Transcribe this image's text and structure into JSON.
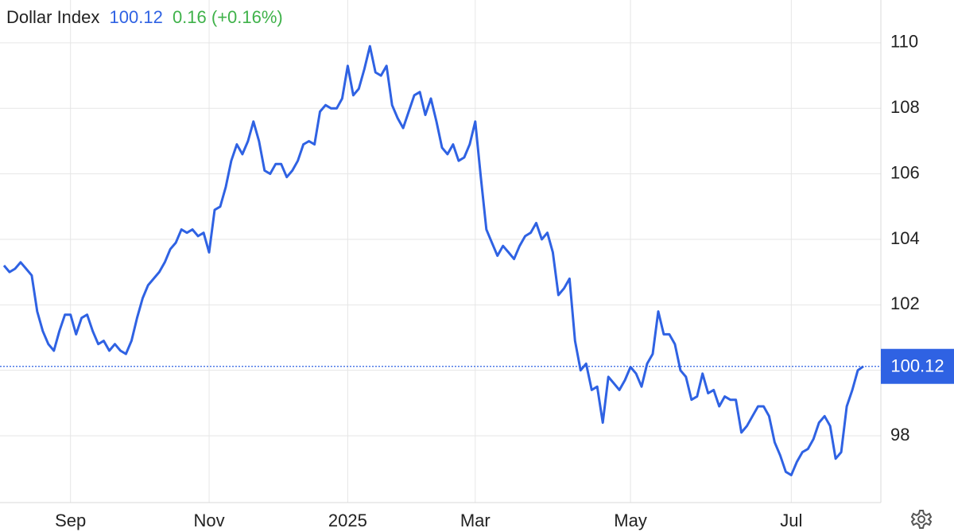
{
  "chart_data": {
    "type": "line",
    "title": "Dollar Index",
    "last_value": 100.12,
    "change_label": "0.16 (+0.16%)",
    "color": "#2f62e3",
    "grid": true,
    "ylim": [
      95.96,
      111.31
    ],
    "yticks": [
      98,
      100,
      102,
      104,
      106,
      108,
      110
    ],
    "categories": [
      null,
      null,
      null,
      null,
      null,
      null,
      null,
      null,
      null,
      null,
      null,
      null,
      "Sep",
      null,
      null,
      null,
      null,
      null,
      null,
      null,
      null,
      null,
      null,
      null,
      null,
      null,
      null,
      null,
      null,
      null,
      null,
      null,
      null,
      null,
      null,
      null,
      null,
      "Nov",
      null,
      null,
      null,
      null,
      null,
      null,
      null,
      null,
      null,
      null,
      null,
      null,
      null,
      null,
      null,
      null,
      null,
      null,
      null,
      null,
      null,
      null,
      null,
      null,
      "2025",
      null,
      null,
      null,
      null,
      null,
      null,
      null,
      null,
      null,
      null,
      null,
      null,
      null,
      null,
      null,
      null,
      null,
      null,
      null,
      null,
      null,
      null,
      "Mar",
      null,
      null,
      null,
      null,
      null,
      null,
      null,
      null,
      null,
      null,
      null,
      null,
      null,
      null,
      null,
      null,
      null,
      null,
      null,
      null,
      null,
      null,
      null,
      null,
      null,
      null,
      null,
      "May",
      null,
      null,
      null,
      null,
      null,
      null,
      null,
      null,
      null,
      null,
      null,
      null,
      null,
      null,
      null,
      null,
      null,
      null,
      null,
      null,
      null,
      null,
      null,
      null,
      null,
      null,
      null,
      null,
      "Jul",
      null,
      null,
      null,
      null,
      null,
      null,
      null,
      null,
      null,
      null,
      null,
      null,
      null
    ],
    "series": [
      {
        "name": "Dollar Index",
        "color": "#2f62e3",
        "values": [
          103.2,
          103.0,
          103.1,
          103.3,
          103.1,
          102.9,
          101.8,
          101.2,
          100.8,
          100.6,
          101.2,
          101.7,
          101.7,
          101.1,
          101.6,
          101.7,
          101.2,
          100.8,
          100.9,
          100.6,
          100.8,
          100.6,
          100.5,
          100.9,
          101.6,
          102.2,
          102.6,
          102.8,
          103.0,
          103.3,
          103.7,
          103.9,
          104.3,
          104.2,
          104.3,
          104.1,
          104.2,
          103.6,
          104.9,
          105.0,
          105.6,
          106.4,
          106.9,
          106.6,
          107.0,
          107.6,
          107.0,
          106.1,
          106.0,
          106.3,
          106.3,
          105.9,
          106.1,
          106.4,
          106.9,
          107.0,
          106.9,
          107.9,
          108.1,
          108.0,
          108.0,
          108.3,
          109.3,
          108.4,
          108.6,
          109.2,
          109.9,
          109.1,
          109.0,
          109.3,
          108.1,
          107.7,
          107.4,
          107.9,
          108.4,
          108.5,
          107.8,
          108.3,
          107.6,
          106.8,
          106.6,
          106.9,
          106.4,
          106.5,
          106.9,
          107.6,
          105.9,
          104.3,
          103.9,
          103.5,
          103.8,
          103.6,
          103.4,
          103.8,
          104.1,
          104.2,
          104.5,
          104.0,
          104.2,
          103.6,
          102.3,
          102.5,
          102.8,
          100.9,
          100.0,
          100.2,
          99.4,
          99.5,
          98.4,
          99.8,
          99.6,
          99.4,
          99.7,
          100.1,
          99.9,
          99.5,
          100.2,
          100.5,
          101.8,
          101.1,
          101.1,
          100.8,
          100.0,
          99.8,
          99.1,
          99.2,
          99.9,
          99.3,
          99.4,
          98.9,
          99.2,
          99.1,
          99.1,
          98.1,
          98.3,
          98.6,
          98.9,
          98.9,
          98.6,
          97.8,
          97.4,
          96.9,
          96.8,
          97.2,
          97.5,
          97.6,
          97.9,
          98.4,
          98.6,
          98.3,
          97.3,
          97.5,
          98.9,
          99.4,
          100.0,
          100.12
        ]
      }
    ]
  }
}
